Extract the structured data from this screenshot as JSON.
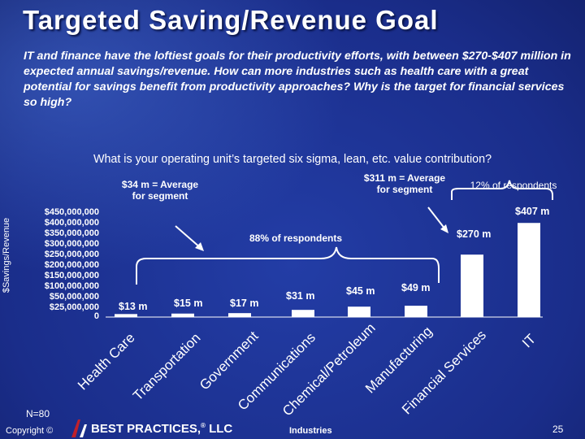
{
  "slide": {
    "title": "Targeted Saving/Revenue Goal",
    "subtitle": "IT and finance have the loftiest goals for their productivity efforts, with between $270-$407 million in expected annual savings/revenue. How can more industries such as health care with a great potential for savings benefit from productivity approaches? Why is the target for financial services so high?",
    "question": "What is your operating unit’s targeted six sigma, lean, etc. value contribution?",
    "n": "N=80",
    "copyright": "Copyright ©",
    "brand": "BEST PRACTICES,",
    "brand_reg": "®",
    "brand_suffix": " LLC",
    "page_number": "25"
  },
  "chart_data": {
    "type": "bar",
    "title": "",
    "xlabel": "Industries",
    "ylabel": "$Savings/Revenue",
    "y_tick_labels": [
      "$450,000,000",
      "$400,000,000",
      "$350,000,000",
      "$300,000,000",
      "$250,000,000",
      "$200,000,000",
      "$150,000,000",
      "$100,000,000",
      "$50,000,000",
      "$25,000,000",
      "0"
    ],
    "ylim": [
      0,
      450
    ],
    "value_units": "$ millions",
    "categories": [
      "Health Care",
      "Transportation",
      "Government",
      "Communications",
      "Chemical/Petroleum",
      "Manufacturing",
      "Financial Services",
      "IT"
    ],
    "values": [
      13,
      15,
      17,
      31,
      45,
      49,
      270,
      407
    ],
    "data_labels": [
      "$13 m",
      "$15 m",
      "$17 m",
      "$31 m",
      "$45 m",
      "$49 m",
      "$270 m",
      "$407 m"
    ],
    "bar_color": "#ffffff",
    "annotations": {
      "avg_low": "$34 m = Average for segment",
      "avg_high": "$311 m = Average for segment",
      "pct_low": "88% of respondents",
      "pct_high": "12% of respondents"
    },
    "grid": false
  }
}
